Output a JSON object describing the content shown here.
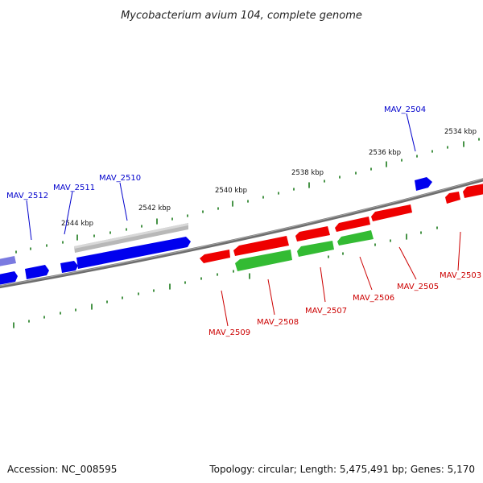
{
  "title": "Mycobacterium avium 104, complete genome",
  "footer": {
    "accession": "Accession: NC_008595",
    "summary": "Topology: circular; Length: 5,475,491 bp; Genes: 5,170"
  },
  "scale_labels": [
    "2534 kbp",
    "2536 kbp",
    "2538 kbp",
    "2540 kbp",
    "2542 kbp",
    "2544 kbp"
  ],
  "genes_forward": [
    "MAV_2504",
    "MAV_2510",
    "MAV_2511",
    "MAV_2512"
  ],
  "genes_reverse": [
    "MAV_2503",
    "MAV_2505",
    "MAV_2506",
    "MAV_2507",
    "MAV_2508",
    "MAV_2509"
  ],
  "colors": {
    "forward_cds": "#0000ee",
    "forward_label": "#0000cc",
    "reverse_cds": "#ee0000",
    "reverse_label": "#cc0000",
    "reverse_gene": "#33bb33",
    "tick": "#1a7a1a",
    "backbone": "#777777",
    "other_feature": "#bdbdbd"
  }
}
